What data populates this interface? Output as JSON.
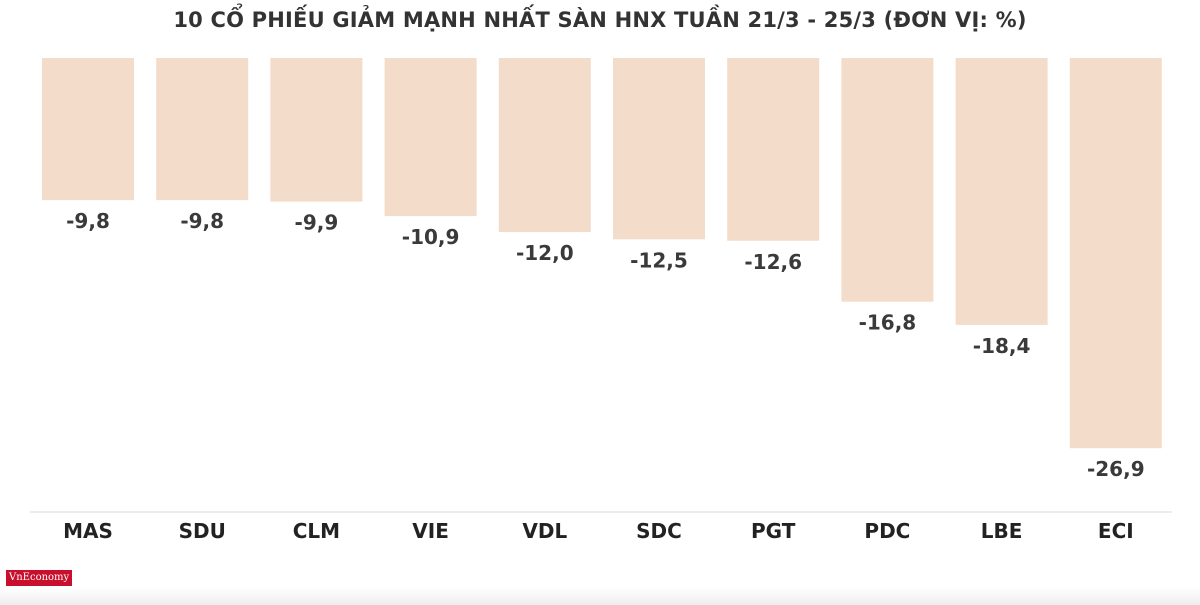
{
  "chart_data": {
    "type": "bar",
    "title": "10 CỔ PHIẾU GIẢM MẠNH NHẤT SÀN HNX TUẦN 21/3 - 25/3 (ĐƠN VỊ: %)",
    "categories": [
      "MAS",
      "SDU",
      "CLM",
      "VIE",
      "VDL",
      "SDC",
      "PGT",
      "PDC",
      "LBE",
      "ECI"
    ],
    "values": [
      -9.8,
      -9.8,
      -9.9,
      -10.9,
      -12.0,
      -12.5,
      -12.6,
      -16.8,
      -18.4,
      -26.9
    ],
    "value_labels": [
      "-9,8",
      "-9,8",
      "-9,9",
      "-10,9",
      "-12,0",
      "-12,5",
      "-12,6",
      "-16,8",
      "-18,4",
      "-26,9"
    ],
    "xlabel": "",
    "ylabel": "",
    "ylim": [
      -31.3,
      0
    ],
    "grid": false,
    "bar_color": "#f3dcc9"
  },
  "logo": {
    "text": "VnEconomy",
    "color": "#c8102e"
  }
}
